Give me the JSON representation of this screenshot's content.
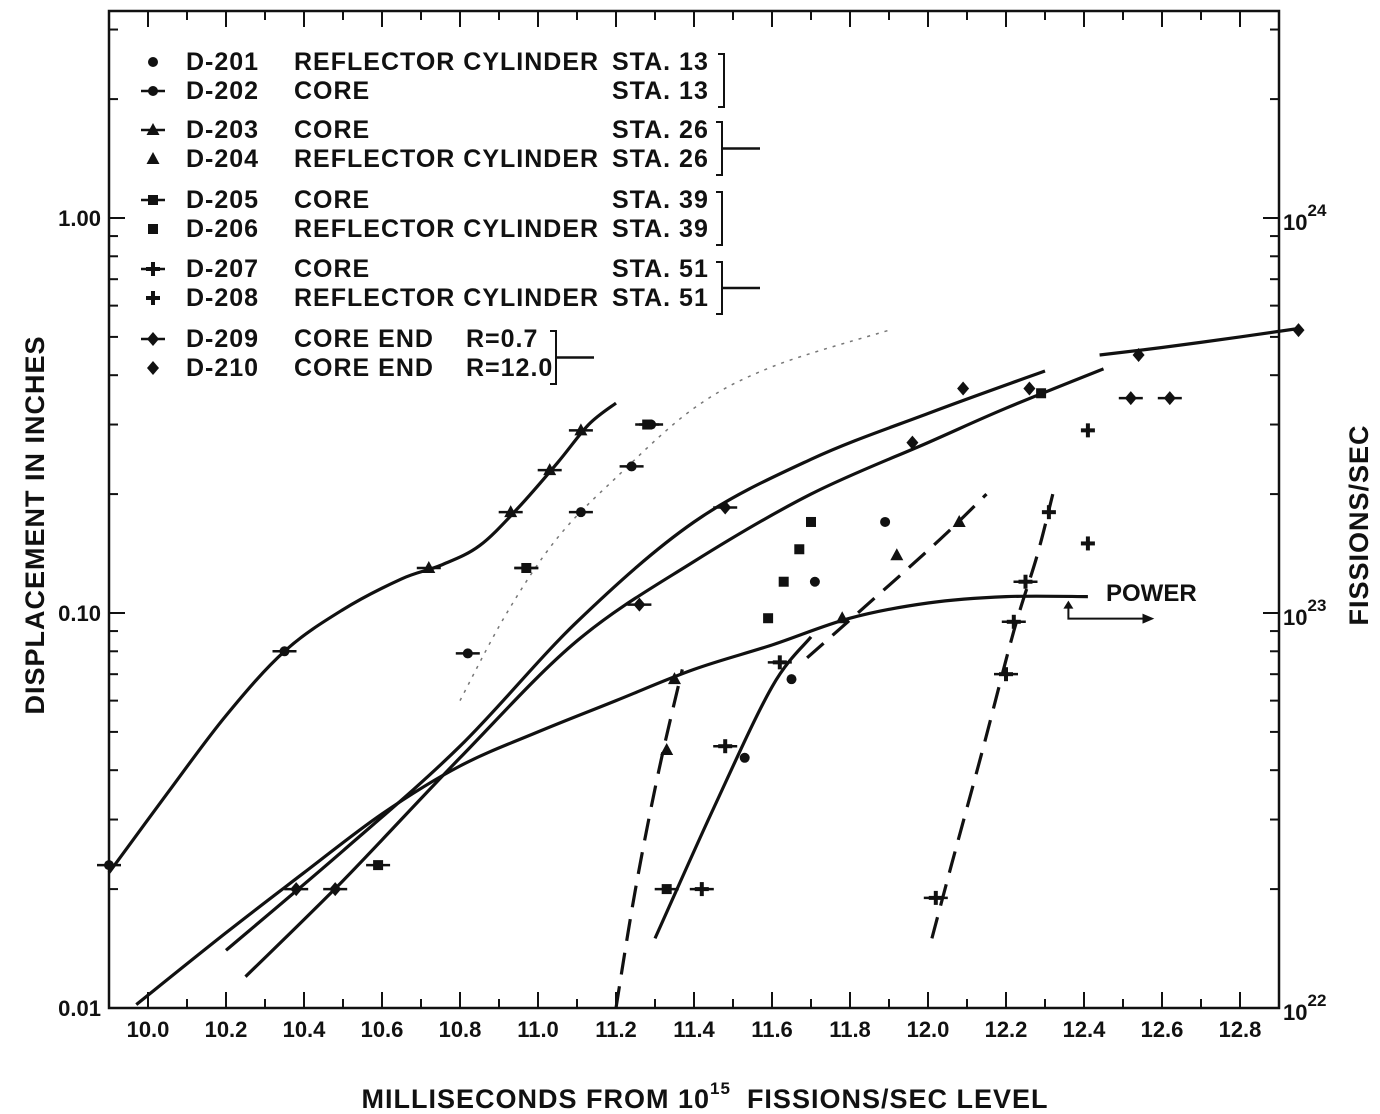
{
  "chart_data": {
    "type": "scatter",
    "title": "",
    "xlabel_main": "MILLISECONDS FROM 10",
    "xlabel_sup": "15",
    "xlabel_tail": "FISSIONS/SEC LEVEL",
    "ylabel": "DISPLACEMENT IN INCHES",
    "y2label": "FISSIONS/SEC",
    "xlim": [
      9.9,
      12.9
    ],
    "ylim": [
      0.01,
      3.0
    ],
    "yscale": "log",
    "x_ticks": [
      "10.0",
      "10.2",
      "10.4",
      "10.6",
      "10.8",
      "11.0",
      "11.2",
      "11.4",
      "11.6",
      "11.8",
      "12.0",
      "12.2",
      "12.4",
      "12.6",
      "12.8"
    ],
    "y_ticks": [
      "0.01",
      "0.10",
      "1.00"
    ],
    "y2_ticks": [
      {
        "base": "10",
        "exp": "22"
      },
      {
        "base": "10",
        "exp": "23"
      },
      {
        "base": "10",
        "exp": "24"
      }
    ],
    "annotation": "POWER",
    "legend": [
      {
        "id": "D-201",
        "desc": "REFLECTOR CYLINDER",
        "sta": "STA. 13",
        "marker": "dot"
      },
      {
        "id": "D-202",
        "desc": "CORE",
        "sta": "STA. 13",
        "marker": "dot-line"
      },
      {
        "id": "D-203",
        "desc": "CORE",
        "sta": "STA. 26",
        "marker": "tri-line"
      },
      {
        "id": "D-204",
        "desc": "REFLECTOR CYLINDER",
        "sta": "STA. 26",
        "marker": "tri"
      },
      {
        "id": "D-205",
        "desc": "CORE",
        "sta": "STA. 39",
        "marker": "square-line"
      },
      {
        "id": "D-206",
        "desc": "REFLECTOR CYLINDER",
        "sta": "STA. 39",
        "marker": "square"
      },
      {
        "id": "D-207",
        "desc": "CORE",
        "sta": "STA. 51",
        "marker": "plus-line"
      },
      {
        "id": "D-208",
        "desc": "REFLECTOR CYLINDER",
        "sta": "STA. 51",
        "marker": "plus"
      },
      {
        "id": "D-209",
        "desc": "CORE END",
        "sta": "R=0.7",
        "marker": "diamond-line"
      },
      {
        "id": "D-210",
        "desc": "CORE END",
        "sta": "R=12.0",
        "marker": "diamond"
      }
    ],
    "series": [
      {
        "marker": "dot",
        "x": [
          11.53,
          11.65,
          11.71,
          11.89
        ],
        "y": [
          0.043,
          0.068,
          0.12,
          0.17
        ]
      },
      {
        "marker": "dot-line",
        "x": [
          9.9,
          10.35,
          10.82,
          10.97,
          11.11,
          11.24,
          11.29
        ],
        "y": [
          0.023,
          0.08,
          0.079,
          0.13,
          0.18,
          0.235,
          0.3
        ]
      },
      {
        "marker": "tri-line",
        "x": [
          10.72,
          10.93,
          11.03,
          11.11
        ],
        "y": [
          0.13,
          0.18,
          0.23,
          0.29
        ]
      },
      {
        "marker": "tri",
        "x": [
          11.33,
          11.35,
          11.78,
          11.92,
          12.08
        ],
        "y": [
          0.045,
          0.068,
          0.097,
          0.14,
          0.17
        ]
      },
      {
        "marker": "square-line",
        "x": [
          10.59,
          10.97,
          11.28,
          11.33
        ],
        "y": [
          0.023,
          0.13,
          0.3,
          0.02
        ]
      },
      {
        "marker": "square",
        "x": [
          11.59,
          11.63,
          11.67,
          11.7,
          12.29
        ],
        "y": [
          0.097,
          0.12,
          0.145,
          0.17,
          0.36
        ]
      },
      {
        "marker": "plus-line",
        "x": [
          11.42,
          11.48,
          11.62,
          12.02,
          12.2,
          12.22,
          12.25
        ],
        "y": [
          0.02,
          0.046,
          0.075,
          0.019,
          0.07,
          0.095,
          0.12
        ]
      },
      {
        "marker": "plus",
        "x": [
          12.31,
          12.41,
          12.41
        ],
        "y": [
          0.18,
          0.15,
          0.29
        ]
      },
      {
        "marker": "diamond-line",
        "x": [
          10.38,
          10.48,
          11.26,
          11.48,
          12.52,
          12.62
        ],
        "y": [
          0.02,
          0.02,
          0.105,
          0.185,
          0.35,
          0.35
        ]
      },
      {
        "marker": "diamond",
        "x": [
          11.96,
          12.09,
          12.26,
          12.54,
          12.95
        ],
        "y": [
          0.27,
          0.37,
          0.37,
          0.45,
          0.52
        ]
      }
    ]
  }
}
